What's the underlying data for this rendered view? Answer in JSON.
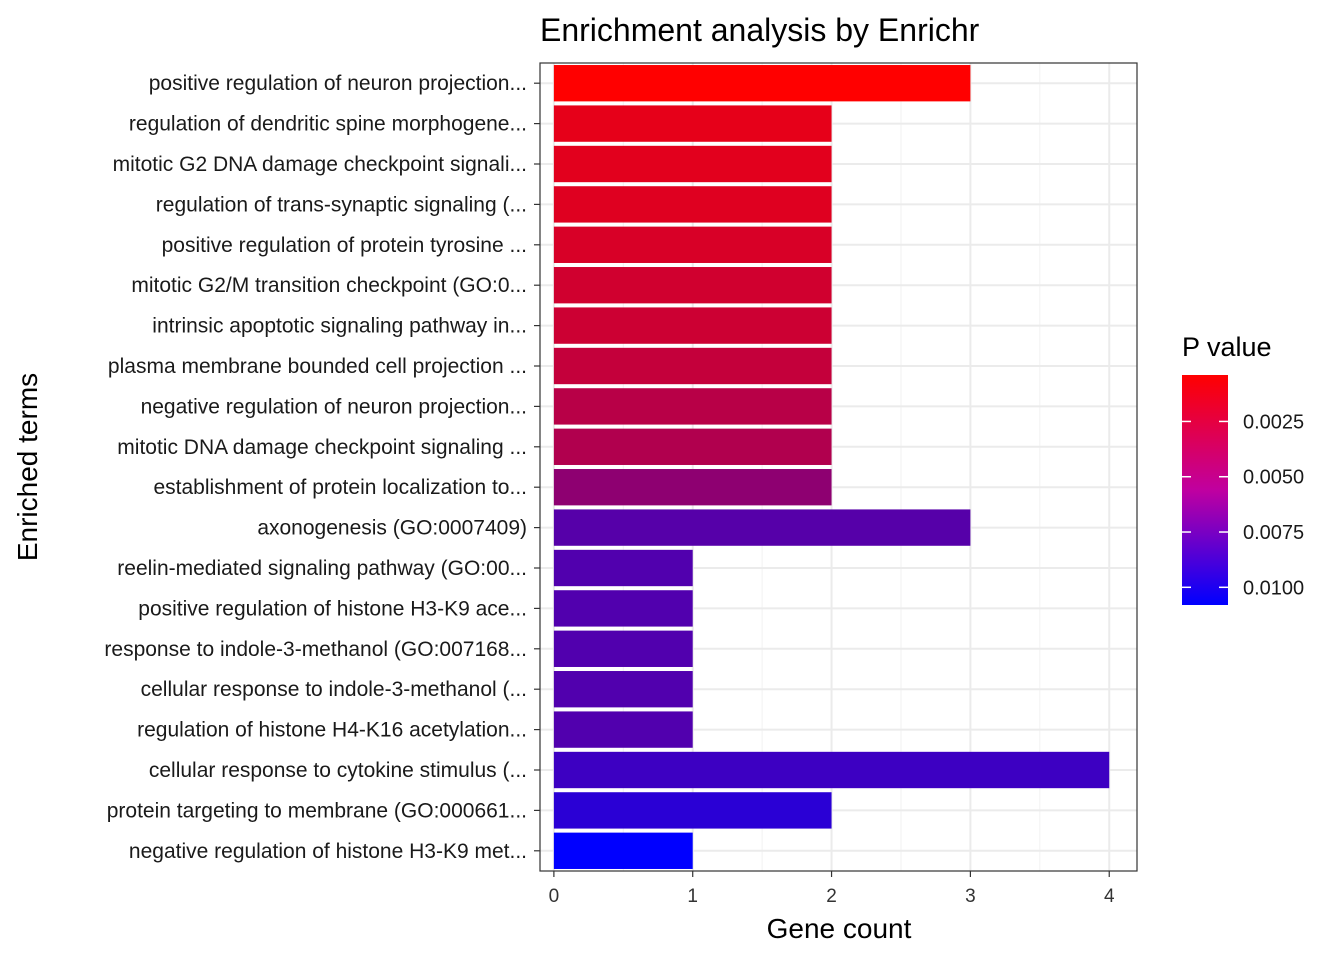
{
  "chart_data": {
    "type": "bar",
    "orientation": "horizontal",
    "title": "Enrichment analysis by Enrichr",
    "xlabel": "Gene count",
    "ylabel": "Enriched terms",
    "xlim": [
      -0.1,
      4.2
    ],
    "x_ticks": [
      0,
      1,
      2,
      3,
      4
    ],
    "grid": true,
    "legend": {
      "title": "P value",
      "position": "right",
      "color_low": "#FF0000",
      "color_high": "#0000FF",
      "range": [
        0.0004,
        0.0108
      ],
      "ticks": [
        {
          "value": 0.0025,
          "label": "0.0025"
        },
        {
          "value": 0.005,
          "label": "0.0050"
        },
        {
          "value": 0.0075,
          "label": "0.0075"
        },
        {
          "value": 0.01,
          "label": "0.0100"
        }
      ]
    },
    "bars": [
      {
        "term": "positive regulation of neuron projection...",
        "count": 3,
        "p": 0.0004
      },
      {
        "term": "regulation of dendritic spine morphogene...",
        "count": 2,
        "p": 0.0014
      },
      {
        "term": "mitotic G2 DNA damage checkpoint signali...",
        "count": 2,
        "p": 0.0016
      },
      {
        "term": "regulation of trans-synaptic signaling (...",
        "count": 2,
        "p": 0.0017
      },
      {
        "term": "positive regulation of protein tyrosine ...",
        "count": 2,
        "p": 0.002
      },
      {
        "term": "mitotic G2/M transition checkpoint (GO:0...",
        "count": 2,
        "p": 0.0023
      },
      {
        "term": "intrinsic apoptotic signaling pathway in...",
        "count": 2,
        "p": 0.0025
      },
      {
        "term": "plasma membrane bounded cell projection ...",
        "count": 2,
        "p": 0.0028
      },
      {
        "term": "negative regulation of neuron projection...",
        "count": 2,
        "p": 0.0033
      },
      {
        "term": "mitotic DNA damage checkpoint signaling ...",
        "count": 2,
        "p": 0.0036
      },
      {
        "term": "establishment of protein localization to...",
        "count": 2,
        "p": 0.005
      },
      {
        "term": "axonogenesis (GO:0007409)",
        "count": 3,
        "p": 0.0073
      },
      {
        "term": "reelin-mediated signaling pathway (GO:00...",
        "count": 1,
        "p": 0.0075
      },
      {
        "term": "positive regulation of histone H3-K9 ace...",
        "count": 1,
        "p": 0.0075
      },
      {
        "term": "response to indole-3-methanol (GO:007168...",
        "count": 1,
        "p": 0.0075
      },
      {
        "term": "cellular response to indole-3-methanol (...",
        "count": 1,
        "p": 0.0075
      },
      {
        "term": "regulation of histone H4-K16 acetylation...",
        "count": 1,
        "p": 0.0075
      },
      {
        "term": "cellular response to cytokine stimulus (...",
        "count": 4,
        "p": 0.0083
      },
      {
        "term": "protein targeting to membrane (GO:000661...",
        "count": 2,
        "p": 0.0091
      },
      {
        "term": "negative regulation of histone H3-K9 met...",
        "count": 1,
        "p": 0.0108
      }
    ]
  }
}
